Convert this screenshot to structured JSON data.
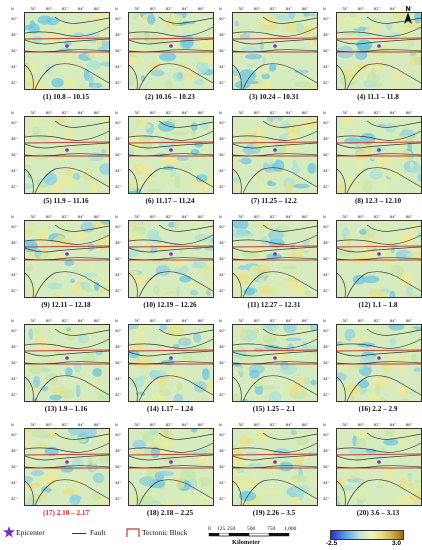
{
  "north_label": "N",
  "lon_ticks": [
    "78°",
    "80°",
    "82°",
    "84°",
    "86°"
  ],
  "lat_ticks": [
    "40°",
    "38°",
    "36°",
    "34°",
    "32°"
  ],
  "lat_corner": "N",
  "epicenter_color": "#7b2fbf",
  "panels": [
    {
      "caption": "(1) 10.8 – 10.15",
      "highlight": false
    },
    {
      "caption": "(2) 10.16 – 10.23",
      "highlight": false
    },
    {
      "caption": "(3) 10.24 – 10.31",
      "highlight": false
    },
    {
      "caption": "(4) 11.1 – 11.8",
      "highlight": false
    },
    {
      "caption": "(5) 11.9 – 11.16",
      "highlight": false
    },
    {
      "caption": "(6) 11.17 – 11.24",
      "highlight": false
    },
    {
      "caption": "(7) 11.25 – 12.2",
      "highlight": false
    },
    {
      "caption": "(8) 12.3 – 12.10",
      "highlight": false
    },
    {
      "caption": "(9) 12.11 – 12.18",
      "highlight": false
    },
    {
      "caption": "(10) 12.19 – 12.26",
      "highlight": false
    },
    {
      "caption": "(11) 12.27 – 12.31",
      "highlight": false
    },
    {
      "caption": "(12) 1.1 – 1.8",
      "highlight": false
    },
    {
      "caption": "(13) 1.9 – 1.16",
      "highlight": false
    },
    {
      "caption": "(14) 1.17 – 1.24",
      "highlight": false
    },
    {
      "caption": "(15) 1.25 – 2.1",
      "highlight": false
    },
    {
      "caption": "(16) 2.2 – 2.9",
      "highlight": false
    },
    {
      "caption": "(17) 2.10 – 2.17",
      "highlight": true
    },
    {
      "caption": "(18) 2.18 – 2.25",
      "highlight": false
    },
    {
      "caption": "(19) 2.26 – 3.5",
      "highlight": false
    },
    {
      "caption": "(20) 3.6 – 3.13",
      "highlight": false
    }
  ],
  "legend": {
    "epicenter": "Epicenter",
    "fault": "Fault",
    "block": "Tectonic Block",
    "scale_ticks": [
      "0",
      "125",
      "250",
      "500",
      "750",
      "1,000"
    ],
    "scale_unit": "Kilometer",
    "colorbar_min": "-2.5",
    "colorbar_max": "3.0"
  }
}
